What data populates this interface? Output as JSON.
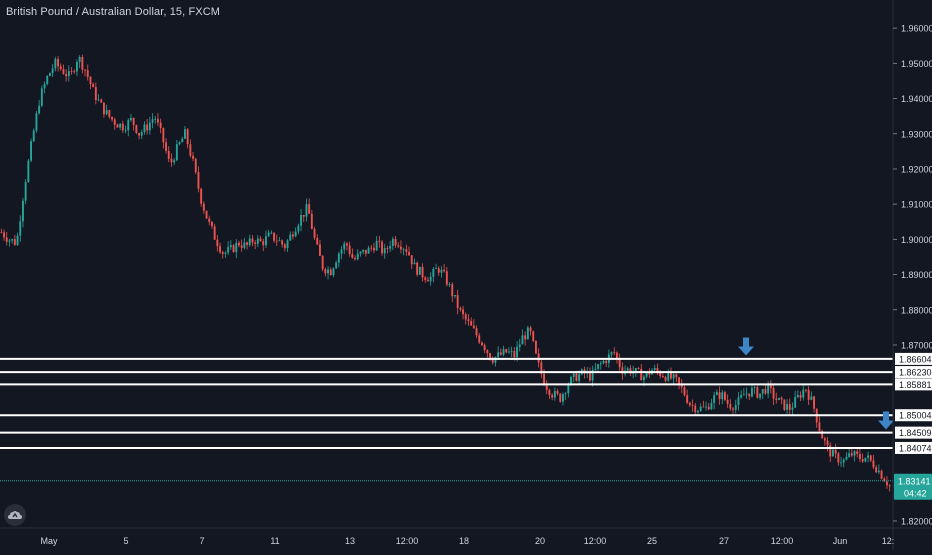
{
  "window": {
    "symbol_title": "British Pound / Australian Dollar, 15, FXCM"
  },
  "colors": {
    "background": "#131722",
    "candle_up": "#26a69a",
    "candle_down": "#ef5350",
    "level_lines": "#ffffff",
    "arrow": "#3d85c6",
    "last_price_badge": "#26a69a",
    "axis_text": "#d1d4dc",
    "price_line": "#26a69a"
  },
  "icons": {
    "logo": "tradingview-cloud-icon",
    "markers": "down-arrow-icon"
  },
  "chart_data": {
    "type": "candlestick",
    "title": "British Pound / Australian Dollar, 15, FXCM",
    "ylim": [
      1.818,
      1.968
    ],
    "y_ticks": [
      "1.96000",
      "1.95000",
      "1.94000",
      "1.93000",
      "1.92000",
      "1.91000",
      "1.90000",
      "1.89000",
      "1.88000",
      "1.87000",
      "1.82000"
    ],
    "x_ticks": [
      "May",
      "5",
      "7",
      "11",
      "13",
      "12:00",
      "18",
      "20",
      "12:00",
      "25",
      "27",
      "12:00",
      "Jun",
      "12:"
    ],
    "series": [
      {
        "values": [
          1.902,
          1.9,
          1.899,
          1.915,
          1.928,
          1.94,
          1.946,
          1.95,
          1.948,
          1.946,
          1.952,
          1.948,
          1.942,
          1.938,
          1.935,
          1.933,
          1.932,
          1.934,
          1.93,
          1.932,
          1.935,
          1.929,
          1.921,
          1.926,
          1.93,
          1.922,
          1.912,
          1.905,
          1.9,
          1.896,
          1.897,
          1.899,
          1.898,
          1.9,
          1.899,
          1.901,
          1.9,
          1.898,
          1.902,
          1.906,
          1.909,
          1.899,
          1.892,
          1.891,
          1.896,
          1.899,
          1.894,
          1.896,
          1.897,
          1.899,
          1.896,
          1.9,
          1.899,
          1.897,
          1.892,
          1.89,
          1.889,
          1.892,
          1.889,
          1.884,
          1.879,
          1.876,
          1.873,
          1.87,
          1.866,
          1.867,
          1.868,
          1.867,
          1.872,
          1.874,
          1.865,
          1.859,
          1.856,
          1.855,
          1.859,
          1.861,
          1.862,
          1.861,
          1.864,
          1.866,
          1.868,
          1.863,
          1.863,
          1.862,
          1.861,
          1.863,
          1.862,
          1.861,
          1.86,
          1.857,
          1.853,
          1.852,
          1.852,
          1.855,
          1.856,
          1.853,
          1.853,
          1.856,
          1.857,
          1.856,
          1.858,
          1.855,
          1.853,
          1.852,
          1.855,
          1.858,
          1.853,
          1.845,
          1.84,
          1.838,
          1.837,
          1.839,
          1.838,
          1.838,
          1.836,
          1.833,
          1.83
        ]
      }
    ],
    "levels": [
      "1.86604",
      "1.86230",
      "1.85881",
      "1.85004",
      "1.84509",
      "1.84074"
    ],
    "level_values": [
      1.86604,
      1.8623,
      1.85881,
      1.85004,
      1.84509,
      1.84074
    ],
    "last_price": "1.83141",
    "last_price_value": 1.83141,
    "countdown": "04:42",
    "arrow_markers": [
      1.867,
      1.846
    ]
  }
}
